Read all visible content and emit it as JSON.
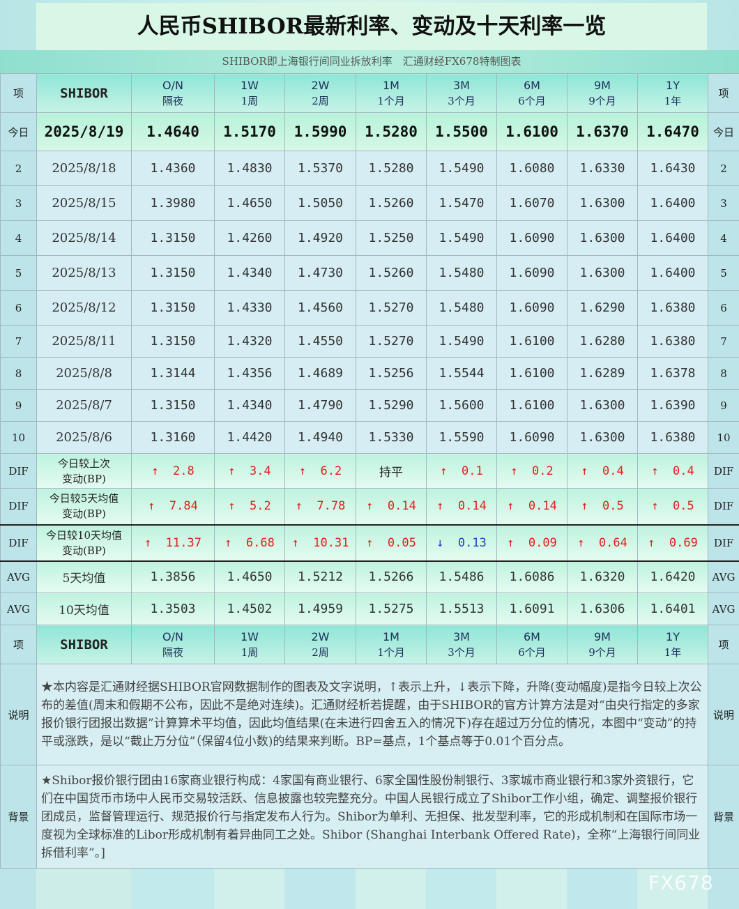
{
  "title": "人民币SHIBOR最新利率、变动及十天利率一览",
  "subtitle": "SHIBOR即上海银行间同业拆放利率　汇通财经FX678特制图表",
  "header": {
    "side_label": "项",
    "name": "SHIBOR",
    "tenors": [
      {
        "en": "O/N",
        "zh": "隔夜"
      },
      {
        "en": "1W",
        "zh": "1周"
      },
      {
        "en": "2W",
        "zh": "2周"
      },
      {
        "en": "1M",
        "zh": "1个月"
      },
      {
        "en": "3M",
        "zh": "3个月"
      },
      {
        "en": "6M",
        "zh": "6个月"
      },
      {
        "en": "9M",
        "zh": "9个月"
      },
      {
        "en": "1Y",
        "zh": "1年"
      }
    ]
  },
  "rows": [
    {
      "idx": "今日",
      "date": "2025/8/19",
      "values": [
        "1.4640",
        "1.5170",
        "1.5990",
        "1.5280",
        "1.5500",
        "1.6100",
        "1.6370",
        "1.6470"
      ]
    },
    {
      "idx": "2",
      "date": "2025/8/18",
      "values": [
        "1.4360",
        "1.4830",
        "1.5370",
        "1.5280",
        "1.5490",
        "1.6080",
        "1.6330",
        "1.6430"
      ]
    },
    {
      "idx": "3",
      "date": "2025/8/15",
      "values": [
        "1.3980",
        "1.4650",
        "1.5050",
        "1.5260",
        "1.5470",
        "1.6070",
        "1.6300",
        "1.6400"
      ]
    },
    {
      "idx": "4",
      "date": "2025/8/14",
      "values": [
        "1.3150",
        "1.4260",
        "1.4920",
        "1.5250",
        "1.5490",
        "1.6090",
        "1.6300",
        "1.6400"
      ]
    },
    {
      "idx": "5",
      "date": "2025/8/13",
      "values": [
        "1.3150",
        "1.4340",
        "1.4730",
        "1.5260",
        "1.5480",
        "1.6090",
        "1.6300",
        "1.6400"
      ]
    },
    {
      "idx": "6",
      "date": "2025/8/12",
      "values": [
        "1.3150",
        "1.4330",
        "1.4560",
        "1.5270",
        "1.5480",
        "1.6090",
        "1.6290",
        "1.6380"
      ]
    },
    {
      "idx": "7",
      "date": "2025/8/11",
      "values": [
        "1.3150",
        "1.4320",
        "1.4550",
        "1.5270",
        "1.5490",
        "1.6100",
        "1.6280",
        "1.6380"
      ]
    },
    {
      "idx": "8",
      "date": "2025/8/8",
      "values": [
        "1.3144",
        "1.4356",
        "1.4689",
        "1.5256",
        "1.5544",
        "1.6100",
        "1.6289",
        "1.6378"
      ]
    },
    {
      "idx": "9",
      "date": "2025/8/7",
      "values": [
        "1.3150",
        "1.4340",
        "1.4790",
        "1.5290",
        "1.5600",
        "1.6100",
        "1.6300",
        "1.6390"
      ]
    },
    {
      "idx": "10",
      "date": "2025/8/6",
      "values": [
        "1.3160",
        "1.4420",
        "1.4940",
        "1.5330",
        "1.5590",
        "1.6090",
        "1.6300",
        "1.6380"
      ]
    }
  ],
  "dif": [
    {
      "side": "DIF",
      "label_l1": "今日较上次",
      "label_l2": "变动(BP)",
      "cells": [
        [
          "↑",
          "2.8",
          "up"
        ],
        [
          "↑",
          "3.4",
          "up"
        ],
        [
          "↑",
          "6.2",
          "up"
        ],
        [
          "",
          "持平",
          "flat"
        ],
        [
          "↑",
          "0.1",
          "up"
        ],
        [
          "↑",
          "0.2",
          "up"
        ],
        [
          "↑",
          "0.4",
          "up"
        ],
        [
          "↑",
          "0.4",
          "up"
        ]
      ]
    },
    {
      "side": "DIF",
      "label_l1": "今日较5天均值",
      "label_l2": "变动(BP)",
      "cells": [
        [
          "↑",
          "7.84",
          "up"
        ],
        [
          "↑",
          "5.2",
          "up"
        ],
        [
          "↑",
          "7.78",
          "up"
        ],
        [
          "↑",
          "0.14",
          "up"
        ],
        [
          "↑",
          "0.14",
          "up"
        ],
        [
          "↑",
          "0.14",
          "up"
        ],
        [
          "↑",
          "0.5",
          "up"
        ],
        [
          "↑",
          "0.5",
          "up"
        ]
      ]
    },
    {
      "side": "DIF",
      "label_l1": "今日较10天均值",
      "label_l2": "变动(BP)",
      "cells": [
        [
          "↑",
          "11.37",
          "up"
        ],
        [
          "↑",
          "6.68",
          "up"
        ],
        [
          "↑",
          "10.31",
          "up"
        ],
        [
          "↑",
          "0.05",
          "up"
        ],
        [
          "↓",
          "0.13",
          "down"
        ],
        [
          "↑",
          "0.09",
          "up"
        ],
        [
          "↑",
          "0.64",
          "up"
        ],
        [
          "↑",
          "0.69",
          "up"
        ]
      ]
    }
  ],
  "avg": [
    {
      "side": "AVG",
      "label": "5天均值",
      "values": [
        "1.3856",
        "1.4650",
        "1.5212",
        "1.5266",
        "1.5486",
        "1.6086",
        "1.6320",
        "1.6420"
      ]
    },
    {
      "side": "AVG",
      "label": "10天均值",
      "values": [
        "1.3503",
        "1.4502",
        "1.4959",
        "1.5275",
        "1.5513",
        "1.6091",
        "1.6306",
        "1.6401"
      ]
    }
  ],
  "notes": [
    {
      "side": "说明",
      "text": "★本内容是汇通财经据SHIBOR官网数据制作的图表及文字说明，↑表示上升，↓表示下降，升降(变动幅度)是指今日较上次公布的差值(周末和假期不公布，因此不是绝对连续)。汇通财经析若提醒，由于SHIBOR的官方计算方法是对“由央行指定的多家报价银行团报出数据”计算算术平均值，因此均值结果(在未进行四舍五入的情况下)存在超过万分位的情况，本图中“变动”的持平或涨跌，是以“截止万分位”（保留4位小数)的结果来判断。BP=基点，1个基点等于0.01个百分点。"
    },
    {
      "side": "背景",
      "text": "★Shibor报价银行团由16家商业银行构成：4家国有商业银行、6家全国性股份制银行、3家城市商业银行和3家外资银行，它们在中国货币市场中人民币交易较活跃、信息披露也较完整充分。中国人民银行成立了Shibor工作小组，确定、调整报价银行团成员，监督管理运行、规范报价行与指定发布人行为。Shibor为单利、无担保、批发型利率，它的形成机制和在国际市场一度视为全球标准的Libor形成机制有着异曲同工之处。Shibor (Shanghai Interbank Offered Rate)，全称“上海银行间同业拆借利率”。]"
    }
  ],
  "watermark": "FX678"
}
